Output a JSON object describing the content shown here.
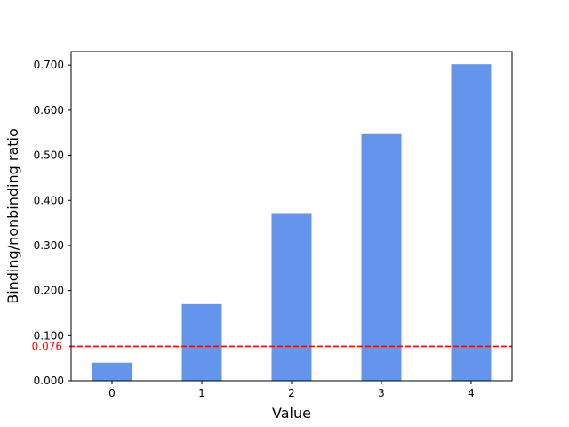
{
  "chart_data": {
    "type": "bar",
    "categories": [
      "0",
      "1",
      "2",
      "3",
      "4"
    ],
    "values": [
      0.04,
      0.17,
      0.372,
      0.547,
      0.702
    ],
    "title": "",
    "xlabel": "Value",
    "ylabel": "Binding/nonbinding ratio",
    "ylim": [
      0,
      0.73
    ],
    "yticks": [
      "0.000",
      "0.100",
      "0.200",
      "0.300",
      "0.400",
      "0.500",
      "0.600",
      "0.700"
    ],
    "ytick_values": [
      0,
      0.1,
      0.2,
      0.3,
      0.4,
      0.5,
      0.6,
      0.7
    ],
    "bar_color": "#6495ed",
    "reference_line": {
      "value": 0.076,
      "label": "0.076",
      "color": "#ff0000",
      "style": "dashed"
    },
    "grid": false,
    "legend": "none"
  }
}
